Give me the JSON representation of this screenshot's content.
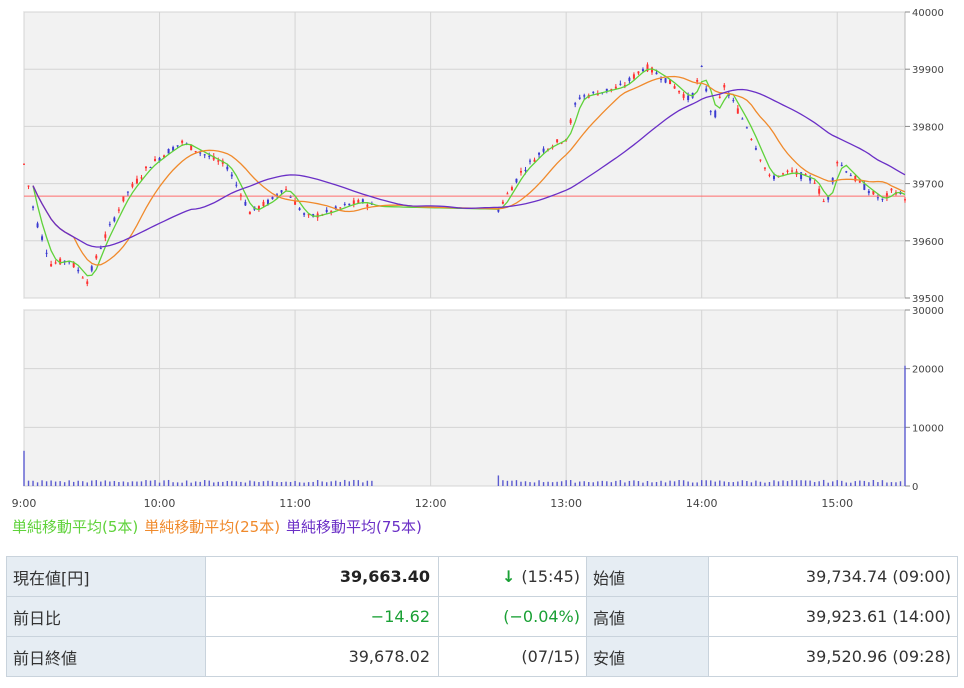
{
  "chart_data": [
    {
      "type": "candlestick",
      "panel": "price",
      "ylim": [
        39500,
        40000
      ],
      "yticks": [
        "40000",
        "39900",
        "39800",
        "39700",
        "39600",
        "39500"
      ],
      "reference_line": 39678.02,
      "x_range": [
        "9:00",
        "15:30"
      ],
      "grid": true,
      "colors": {
        "up": "#ff3030",
        "down": "#3a3ad0",
        "ref": "#ff6b6b",
        "ma5": "#5fd23a",
        "ma25": "#f08a2c",
        "ma75": "#6a2fc6"
      },
      "series_points": [
        [
          "9:00",
          39734
        ],
        [
          "9:05",
          39640
        ],
        [
          "9:12",
          39560
        ],
        [
          "9:20",
          39566
        ],
        [
          "9:28",
          39530
        ],
        [
          "9:35",
          39600
        ],
        [
          "9:45",
          39680
        ],
        [
          "9:55",
          39730
        ],
        [
          "10:05",
          39760
        ],
        [
          "10:10",
          39772
        ],
        [
          "10:18",
          39755
        ],
        [
          "10:30",
          39730
        ],
        [
          "10:40",
          39650
        ],
        [
          "10:50",
          39672
        ],
        [
          "10:55",
          39695
        ],
        [
          "11:05",
          39640
        ],
        [
          "11:15",
          39650
        ],
        [
          "11:25",
          39665
        ],
        [
          "11:30",
          39668
        ],
        [
          "11:35",
          39660
        ],
        [
          "12:30",
          39655
        ],
        [
          "12:40",
          39720
        ],
        [
          "12:50",
          39760
        ],
        [
          "13:00",
          39780
        ],
        [
          "13:05",
          39850
        ],
        [
          "13:15",
          39860
        ],
        [
          "13:25",
          39870
        ],
        [
          "13:35",
          39905
        ],
        [
          "13:45",
          39880
        ],
        [
          "13:55",
          39845
        ],
        [
          "14:00",
          39900
        ],
        [
          "14:05",
          39810
        ],
        [
          "14:10",
          39870
        ],
        [
          "14:20",
          39800
        ],
        [
          "14:30",
          39710
        ],
        [
          "14:40",
          39720
        ],
        [
          "14:50",
          39705
        ],
        [
          "14:55",
          39660
        ],
        [
          "15:00",
          39740
        ],
        [
          "15:10",
          39700
        ],
        [
          "15:20",
          39670
        ],
        [
          "15:25",
          39690
        ],
        [
          "15:30",
          39675
        ]
      ],
      "legend": [
        "単純移動平均(5本)",
        "単純移動平均(25本)",
        "単純移動平均(75本)"
      ]
    },
    {
      "type": "bar",
      "panel": "volume",
      "ylim": [
        0,
        30000
      ],
      "yticks": [
        "30000",
        "20000",
        "10000",
        "0"
      ],
      "xticks": [
        "9:00",
        "10:00",
        "11:00",
        "12:00",
        "13:00",
        "14:00",
        "15:00"
      ],
      "notable_bars": [
        [
          "9:00",
          6000
        ],
        [
          "12:30",
          1800
        ],
        [
          "15:30",
          20500
        ]
      ],
      "typical_volume": 800
    }
  ],
  "legend": {
    "ma5": "単純移動平均(5本)",
    "ma25": "単純移動平均(25本)",
    "ma75": "単純移動平均(75本)"
  },
  "table": {
    "current_label": "現在値[円]",
    "current_value": "39,663.40",
    "current_arrow": "↓",
    "current_time": "(15:45)",
    "open_label": "始値",
    "open_value": "39,734.74 (09:00)",
    "change_label": "前日比",
    "change_value": "−14.62",
    "change_pct": "(−0.04%)",
    "high_label": "高値",
    "high_value": "39,923.61 (14:00)",
    "prev_label": "前日終値",
    "prev_value": "39,678.02",
    "prev_date": "(07/15)",
    "low_label": "安値",
    "low_value": "39,520.96 (09:28)"
  }
}
